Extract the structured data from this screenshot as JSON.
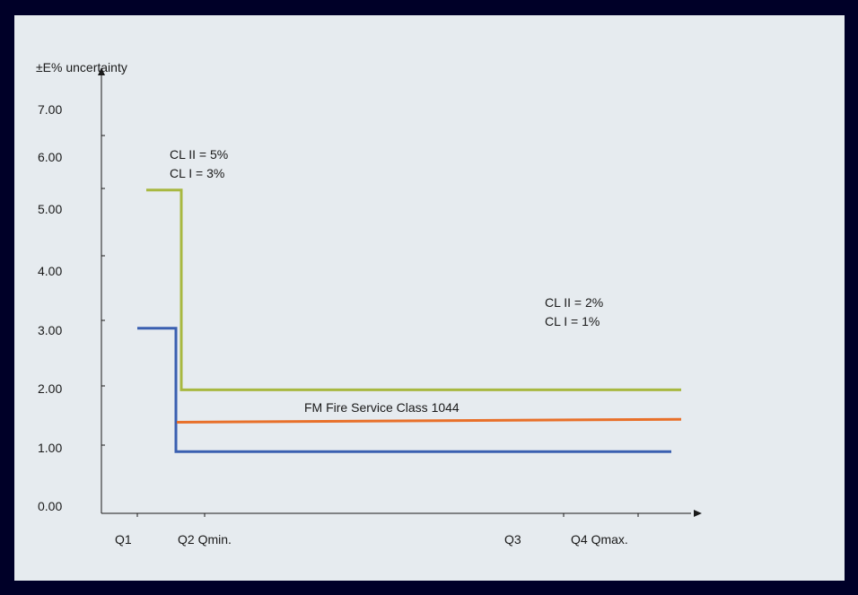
{
  "colors": {
    "page_bg": "#000028",
    "panel_bg": "#e6ebef",
    "axis": "#1a1a1a",
    "series_cl_low": "#a8b840",
    "series_cl_high": "#3a5fb0",
    "series_fm": "#e8702a"
  },
  "chart_data": {
    "type": "line",
    "title": "",
    "ylabel": "±E% uncertainty",
    "xlabel": "",
    "ylim": [
      0,
      7.5
    ],
    "yticks": [
      "0.00",
      "1.00",
      "2.00",
      "3.00",
      "4.00",
      "5.00",
      "6.00",
      "7.00"
    ],
    "xticks": [
      "Q1",
      "Q2 Qmin.",
      "Q3",
      "Q4 Qmax."
    ],
    "annotations": [
      {
        "id": "low",
        "lines": [
          "CL II = 5%",
          "CL I = 3%"
        ]
      },
      {
        "id": "high",
        "lines": [
          "CL II = 2%",
          "CL I = 1%"
        ]
      }
    ],
    "series": [
      {
        "id": "cl_low",
        "points": [
          {
            "x": "Q1",
            "y": 5.5
          },
          {
            "x": "Q2 Qmin.",
            "y": 5.5
          },
          {
            "x": "Q2 Qmin.",
            "y": 2.1
          },
          {
            "x": "Q4 Qmax.",
            "y": 2.1
          }
        ]
      },
      {
        "id": "cl_high",
        "points": [
          {
            "x": "Q1",
            "y": 3.15
          },
          {
            "x": "Q2 Qmin.",
            "y": 3.15
          },
          {
            "x": "Q2 Qmin.",
            "y": 1.05
          },
          {
            "x": "Q4 Qmax.",
            "y": 1.05
          }
        ]
      },
      {
        "id": "fm",
        "name": "FM Fire Service Class 1044",
        "points": [
          {
            "x": "Q2 Qmin.",
            "y": 1.55
          },
          {
            "x": "Q4 Qmax.",
            "y": 1.6
          }
        ]
      }
    ]
  }
}
